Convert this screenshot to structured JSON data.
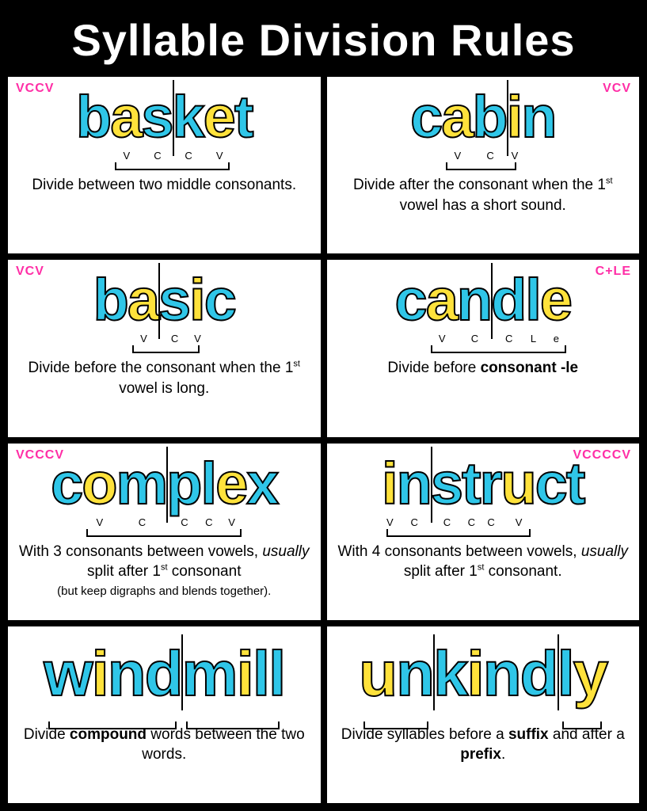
{
  "title": "Syllable Division Rules",
  "colors": {
    "cyan": "#2fc6e8",
    "yellow": "#ffe23b",
    "pink": "#ff2ea6",
    "black": "#000000",
    "white": "#ffffff"
  },
  "cells": [
    {
      "tag": "VCCV",
      "tag_side": "left",
      "letters": [
        {
          "ch": "b",
          "c": "cyan"
        },
        {
          "ch": "a",
          "c": "yellow",
          "sub": "V"
        },
        {
          "ch": "s",
          "c": "cyan",
          "sub": "C"
        },
        {
          "ch": "k",
          "c": "cyan",
          "sub": "C"
        },
        {
          "ch": "e",
          "c": "yellow",
          "sub": "V"
        },
        {
          "ch": "t",
          "c": "cyan"
        }
      ],
      "divider_after": 3,
      "brackets": [
        {
          "from": 1,
          "to": 4
        }
      ],
      "desc_html": "Divide between two middle consonants."
    },
    {
      "tag": "VCV",
      "tag_side": "right",
      "letters": [
        {
          "ch": "c",
          "c": "cyan"
        },
        {
          "ch": "a",
          "c": "yellow",
          "sub": "V"
        },
        {
          "ch": "b",
          "c": "cyan",
          "sub": "C"
        },
        {
          "ch": "i",
          "c": "yellow",
          "sub": "V"
        },
        {
          "ch": "n",
          "c": "cyan"
        }
      ],
      "divider_after": 3,
      "brackets": [
        {
          "from": 1,
          "to": 3
        }
      ],
      "desc_html": "Divide after the consonant when the 1<sup>st</sup> vowel has a short sound."
    },
    {
      "tag": "VCV",
      "tag_side": "left",
      "letters": [
        {
          "ch": "b",
          "c": "cyan"
        },
        {
          "ch": "a",
          "c": "yellow",
          "sub": "V"
        },
        {
          "ch": "s",
          "c": "cyan",
          "sub": "C"
        },
        {
          "ch": "i",
          "c": "yellow",
          "sub": "V"
        },
        {
          "ch": "c",
          "c": "cyan"
        }
      ],
      "divider_after": 2,
      "brackets": [
        {
          "from": 1,
          "to": 3
        }
      ],
      "desc_html": "Divide before the consonant when the 1<sup>st</sup> vowel is long."
    },
    {
      "tag": "C+LE",
      "tag_side": "right",
      "letters": [
        {
          "ch": "c",
          "c": "cyan"
        },
        {
          "ch": "a",
          "c": "yellow",
          "sub": "V"
        },
        {
          "ch": "n",
          "c": "cyan",
          "sub": "C"
        },
        {
          "ch": "d",
          "c": "cyan",
          "sub": "C"
        },
        {
          "ch": "l",
          "c": "cyan",
          "sub": "L"
        },
        {
          "ch": "e",
          "c": "yellow",
          "sub": "e"
        }
      ],
      "divider_after": 3,
      "brackets": [
        {
          "from": 1,
          "to": 5
        }
      ],
      "desc_html": "Divide before <span class='b'>consonant -le</span>"
    },
    {
      "tag": "VCCCV",
      "tag_side": "left",
      "letters": [
        {
          "ch": "c",
          "c": "cyan"
        },
        {
          "ch": "o",
          "c": "yellow",
          "sub": "V"
        },
        {
          "ch": "m",
          "c": "cyan",
          "sub": "C"
        },
        {
          "ch": "p",
          "c": "cyan",
          "sub": "C"
        },
        {
          "ch": "l",
          "c": "cyan",
          "sub": "C"
        },
        {
          "ch": "e",
          "c": "yellow",
          "sub": "V"
        },
        {
          "ch": "x",
          "c": "cyan"
        }
      ],
      "divider_after": 3,
      "brackets": [
        {
          "from": 1,
          "to": 5
        }
      ],
      "desc_html": "With 3 consonants between vowels, <span class='i'>usually</span> split after 1<sup>st</sup> consonant <span class='small'>(but keep digraphs and blends together).</span>"
    },
    {
      "tag": "VCCCCV",
      "tag_side": "right",
      "letters": [
        {
          "ch": "i",
          "c": "yellow",
          "sub": "V"
        },
        {
          "ch": "n",
          "c": "cyan",
          "sub": "C"
        },
        {
          "ch": "s",
          "c": "cyan",
          "sub": "C"
        },
        {
          "ch": "t",
          "c": "cyan",
          "sub": "C"
        },
        {
          "ch": "r",
          "c": "cyan",
          "sub": "C"
        },
        {
          "ch": "u",
          "c": "yellow",
          "sub": "V"
        },
        {
          "ch": "c",
          "c": "cyan"
        },
        {
          "ch": "t",
          "c": "cyan"
        }
      ],
      "divider_after": 2,
      "brackets": [
        {
          "from": 0,
          "to": 5
        }
      ],
      "desc_html": "With 4 consonants between vowels, <span class='i'>usually</span> split after 1<sup>st</sup> consonant."
    },
    {
      "tag": "",
      "tag_side": "left",
      "letters": [
        {
          "ch": "w",
          "c": "cyan"
        },
        {
          "ch": "i",
          "c": "yellow"
        },
        {
          "ch": "n",
          "c": "cyan"
        },
        {
          "ch": "d",
          "c": "cyan"
        },
        {
          "ch": "m",
          "c": "cyan"
        },
        {
          "ch": "i",
          "c": "yellow"
        },
        {
          "ch": "l",
          "c": "cyan"
        },
        {
          "ch": "l",
          "c": "cyan"
        }
      ],
      "divider_after": 4,
      "brackets": [
        {
          "from": 0,
          "to": 3
        },
        {
          "from": 4,
          "to": 7
        }
      ],
      "desc_html": "Divide <span class='b'>compound</span> words between the two words."
    },
    {
      "tag": "",
      "tag_side": "right",
      "letters": [
        {
          "ch": "u",
          "c": "yellow"
        },
        {
          "ch": "n",
          "c": "cyan"
        },
        {
          "ch": "k",
          "c": "cyan"
        },
        {
          "ch": "i",
          "c": "yellow"
        },
        {
          "ch": "n",
          "c": "cyan"
        },
        {
          "ch": "d",
          "c": "cyan"
        },
        {
          "ch": "l",
          "c": "cyan"
        },
        {
          "ch": "y",
          "c": "yellow"
        }
      ],
      "divider_after": 2,
      "divider2_after": 6,
      "brackets": [
        {
          "from": 0,
          "to": 1
        },
        {
          "from": 6,
          "to": 7
        }
      ],
      "desc_html": "Divide syllables before a <span class='b'>suffix</span> and after a <span class='b'>prefix</span>."
    }
  ]
}
